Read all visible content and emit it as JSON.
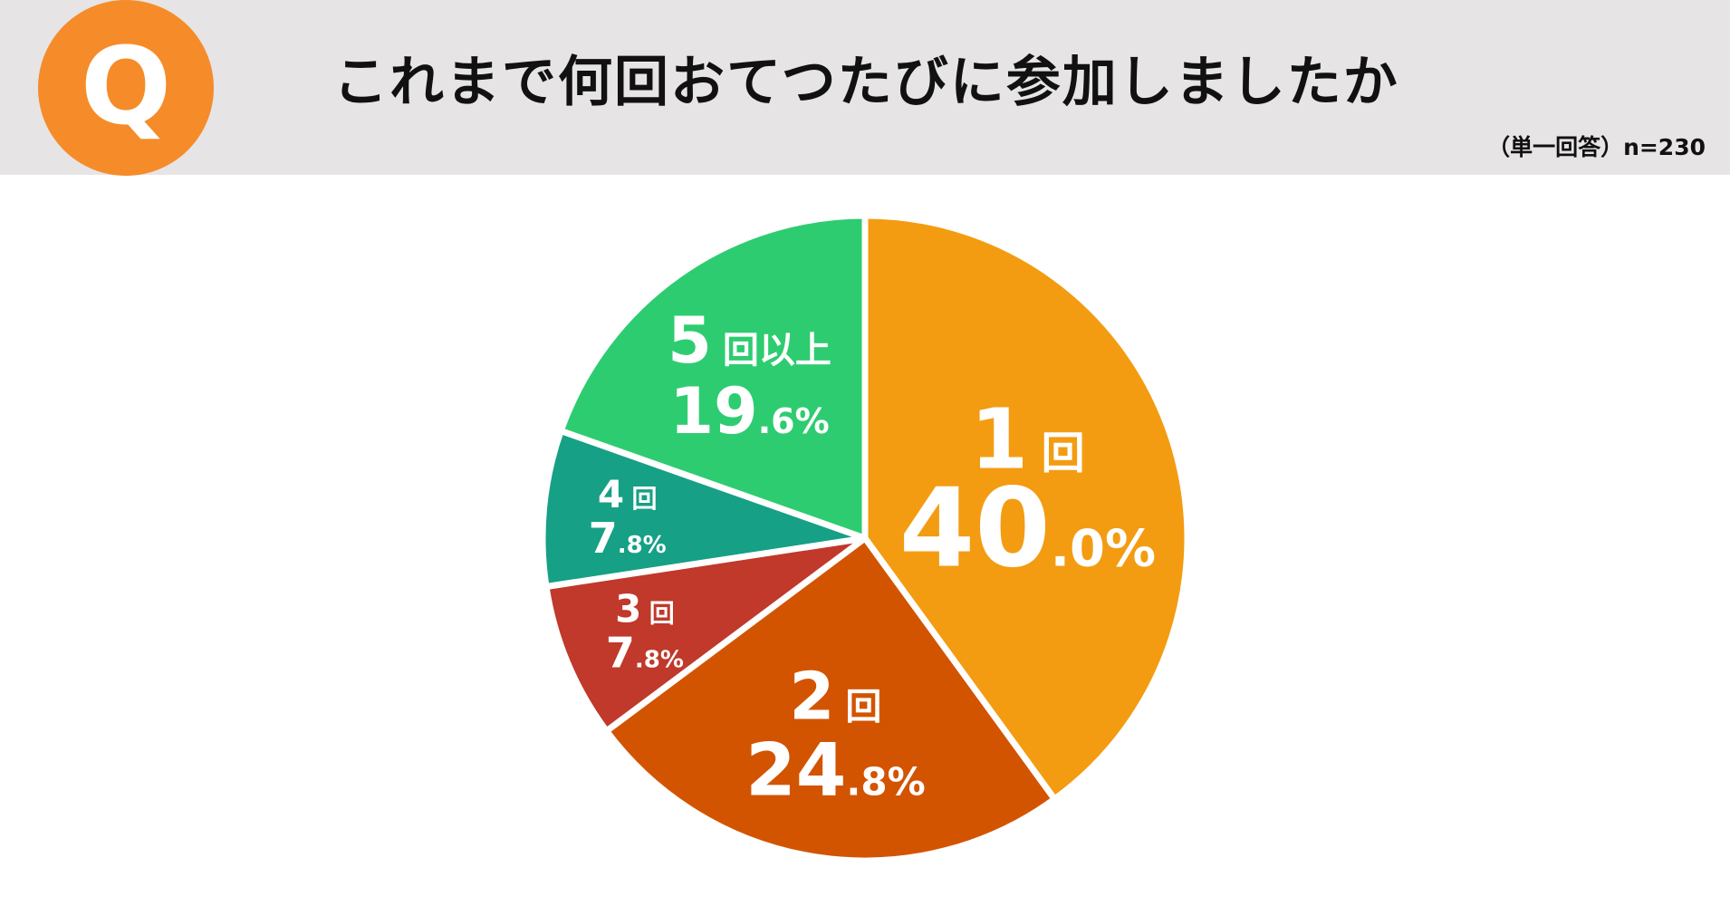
{
  "header": {
    "badge_letter": "Q",
    "title": "これまで何回おてつたびに参加しましたか",
    "note": "（単一回答）n=230"
  },
  "colors": {
    "header_bg": "#e6e4e5",
    "badge": "#f68b2a"
  },
  "chart_data": {
    "type": "pie",
    "title": "これまで何回おてつたびに参加しましたか",
    "categories": [
      "1回",
      "2回",
      "3回",
      "4回",
      "5回以上"
    ],
    "values": [
      40.0,
      24.8,
      7.8,
      7.8,
      19.6
    ],
    "unit": "%",
    "colors": [
      "#f39c12",
      "#d35400",
      "#c0392b",
      "#16a085",
      "#2ecc71"
    ],
    "labels": [
      {
        "name": "1",
        "suffix": "回",
        "int": "40",
        "dec": ".0%"
      },
      {
        "name": "2",
        "suffix": "回",
        "int": "24",
        "dec": ".8%"
      },
      {
        "name": "3",
        "suffix": "回",
        "int": "7",
        "dec": ".8%"
      },
      {
        "name": "4",
        "suffix": "回",
        "int": "7",
        "dec": ".8%"
      },
      {
        "name": "5",
        "suffix": "回以上",
        "int": "19",
        "dec": ".6%"
      }
    ],
    "start_angle_deg": 0,
    "direction": "clockwise"
  }
}
